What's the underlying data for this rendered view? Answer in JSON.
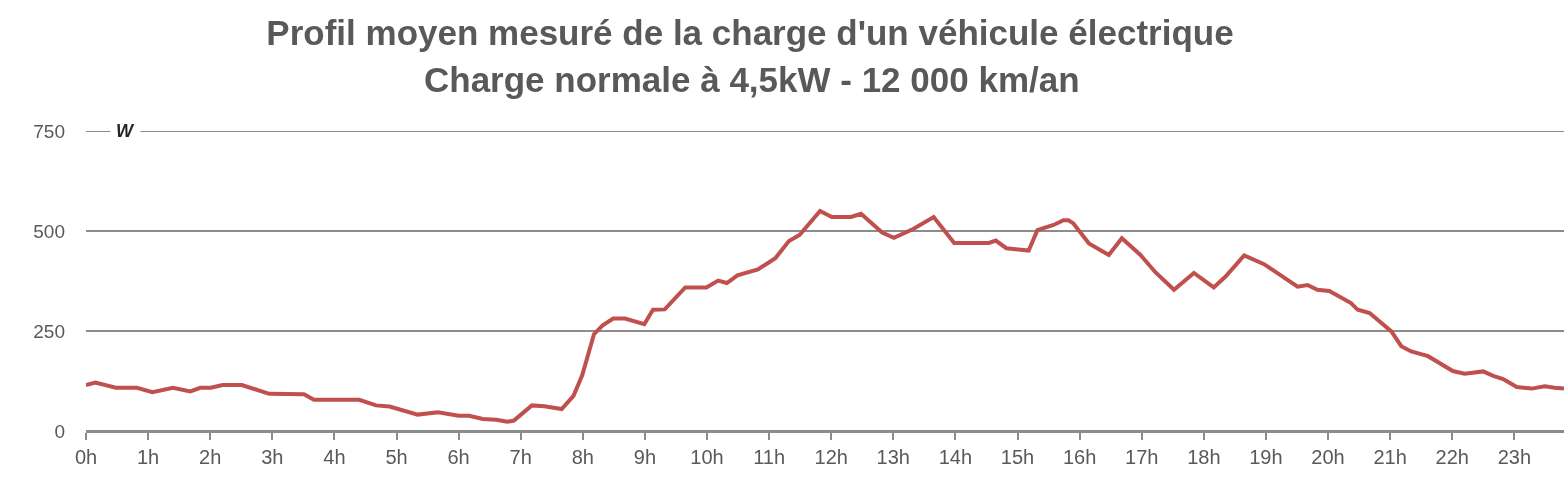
{
  "chart_data": {
    "type": "line",
    "title": "Profil moyen mesuré de la charge d'un véhicule électrique",
    "subtitle": "Charge normale à 4,5kW - 12 000 km/an",
    "ylabel": "W",
    "x": [
      0,
      0.15,
      0.48,
      0.82,
      1.07,
      1.4,
      1.68,
      1.84,
      2.01,
      2.2,
      2.51,
      2.95,
      3.51,
      3.67,
      4.4,
      4.67,
      4.89,
      5.34,
      5.67,
      6.0,
      6.17,
      6.39,
      6.61,
      6.78,
      6.89,
      7.18,
      7.38,
      7.66,
      7.85,
      7.99,
      8.18,
      8.32,
      8.49,
      8.68,
      8.99,
      9.13,
      9.32,
      9.65,
      9.99,
      10.18,
      10.32,
      10.49,
      10.82,
      11.1,
      11.32,
      11.49,
      11.82,
      12.01,
      12.32,
      12.48,
      12.82,
      13.01,
      13.32,
      13.65,
      13.98,
      14.54,
      14.65,
      14.82,
      15.18,
      15.32,
      15.58,
      15.74,
      15.82,
      15.9,
      16.15,
      16.47,
      16.68,
      16.98,
      17.22,
      17.52,
      17.84,
      18.16,
      18.35,
      18.65,
      18.97,
      19.51,
      19.67,
      19.83,
      20.02,
      20.37,
      20.48,
      20.67,
      21.02,
      21.18,
      21.34,
      21.61,
      22.01,
      22.2,
      22.5,
      22.66,
      22.82,
      23.04,
      23.28,
      23.49,
      23.65,
      23.8
    ],
    "series": [
      {
        "color": "#c0504d",
        "values": [
          115,
          121,
          108,
          108,
          97,
          108,
          99,
          108,
          108,
          115,
          115,
          93,
          92,
          78,
          78,
          64,
          61,
          41,
          47,
          38,
          38,
          30,
          28,
          23,
          26,
          64,
          62,
          55,
          88,
          139,
          242,
          264,
          281,
          281,
          267,
          303,
          304,
          359,
          359,
          376,
          370,
          389,
          404,
          432,
          475,
          490,
          550,
          535,
          535,
          543,
          496,
          483,
          505,
          535,
          470,
          470,
          476,
          457,
          451,
          502,
          515,
          527,
          527,
          519,
          469,
          440,
          482,
          440,
          397,
          353,
          395,
          359,
          386,
          439,
          417,
          361,
          365,
          353,
          350,
          320,
          303,
          295,
          249,
          212,
          199,
          187,
          150,
          143,
          149,
          138,
          130,
          110,
          106,
          112,
          108,
          106
        ]
      }
    ],
    "xlim": [
      0,
      23.8
    ],
    "xticks": [
      {
        "value": 0,
        "label": "0h"
      },
      {
        "value": 1,
        "label": "1h"
      },
      {
        "value": 2,
        "label": "2h"
      },
      {
        "value": 3,
        "label": "3h"
      },
      {
        "value": 4,
        "label": "4h"
      },
      {
        "value": 5,
        "label": "5h"
      },
      {
        "value": 6,
        "label": "6h"
      },
      {
        "value": 7,
        "label": "7h"
      },
      {
        "value": 8,
        "label": "8h"
      },
      {
        "value": 9,
        "label": "9h"
      },
      {
        "value": 10,
        "label": "10h"
      },
      {
        "value": 11,
        "label": "11h"
      },
      {
        "value": 12,
        "label": "12h"
      },
      {
        "value": 13,
        "label": "13h"
      },
      {
        "value": 14,
        "label": "14h"
      },
      {
        "value": 15,
        "label": "15h"
      },
      {
        "value": 16,
        "label": "16h"
      },
      {
        "value": 17,
        "label": "17h"
      },
      {
        "value": 18,
        "label": "18h"
      },
      {
        "value": 19,
        "label": "19h"
      },
      {
        "value": 20,
        "label": "20h"
      },
      {
        "value": 21,
        "label": "21h"
      },
      {
        "value": 22,
        "label": "22h"
      },
      {
        "value": 23,
        "label": "23h"
      }
    ],
    "ylim": [
      0,
      750
    ],
    "yticks": [
      0,
      250,
      500,
      750
    ],
    "grid": "y",
    "line_style": "solid"
  }
}
